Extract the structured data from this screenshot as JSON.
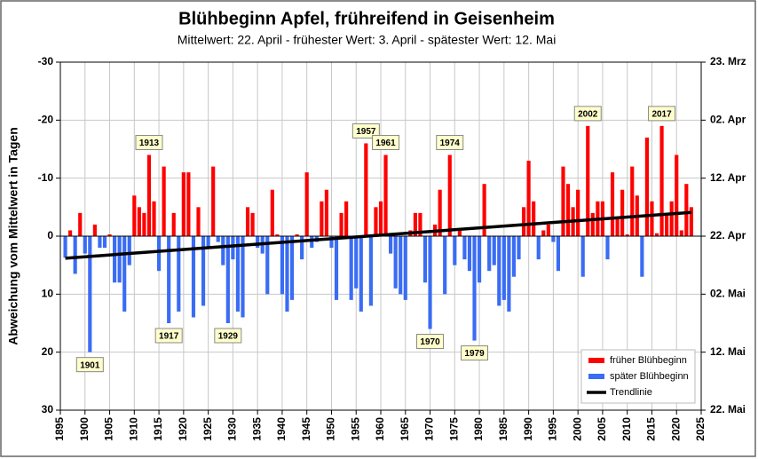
{
  "chart_data": {
    "type": "bar",
    "title": "Blühbeginn  Apfel, frühreifend in Geisenheim",
    "subtitle": "Mittelwert:  22. April - frühester Wert: 3. April - spätester Wert: 12. Mai",
    "y_label": "Abweichung vom Mittelwert in Tagen",
    "x": [
      1896,
      1897,
      1898,
      1899,
      1900,
      1901,
      1902,
      1903,
      1904,
      1905,
      1906,
      1907,
      1908,
      1909,
      1910,
      1911,
      1912,
      1913,
      1914,
      1915,
      1916,
      1917,
      1918,
      1919,
      1920,
      1921,
      1922,
      1923,
      1924,
      1925,
      1926,
      1927,
      1928,
      1929,
      1930,
      1931,
      1932,
      1933,
      1934,
      1935,
      1936,
      1937,
      1938,
      1939,
      1940,
      1941,
      1942,
      1943,
      1944,
      1945,
      1946,
      1947,
      1948,
      1949,
      1950,
      1951,
      1952,
      1953,
      1954,
      1955,
      1956,
      1957,
      1958,
      1959,
      1960,
      1961,
      1962,
      1963,
      1964,
      1965,
      1966,
      1967,
      1968,
      1969,
      1970,
      1971,
      1972,
      1973,
      1974,
      1975,
      1976,
      1977,
      1978,
      1979,
      1980,
      1981,
      1982,
      1983,
      1984,
      1985,
      1986,
      1987,
      1988,
      1989,
      1990,
      1991,
      1992,
      1993,
      1994,
      1995,
      1996,
      1997,
      1998,
      1999,
      2000,
      2001,
      2002,
      2003,
      2004,
      2005,
      2006,
      2007,
      2008,
      2009,
      2010,
      2011,
      2012,
      2013,
      2014,
      2015,
      2016,
      2017,
      2018,
      2019,
      2020,
      2021,
      2022,
      2023
    ],
    "series": [
      {
        "name": "früher Blühbeginn",
        "color": "#ff0000",
        "values": [
          null,
          -1,
          null,
          -4,
          null,
          null,
          -2,
          null,
          null,
          -0.3,
          null,
          null,
          null,
          null,
          -7,
          -5,
          -4,
          -14,
          -6,
          null,
          -12,
          null,
          -4,
          null,
          -11,
          -11,
          null,
          -5,
          null,
          null,
          -12,
          null,
          null,
          null,
          null,
          null,
          null,
          -5,
          -4,
          null,
          null,
          null,
          -8,
          -0.3,
          null,
          null,
          null,
          -0.3,
          null,
          -11,
          null,
          null,
          -6,
          -8,
          null,
          null,
          -4,
          -6,
          null,
          null,
          null,
          -16,
          null,
          -5,
          -6,
          -14,
          null,
          null,
          null,
          null,
          -1,
          -4,
          -4,
          null,
          null,
          -2,
          -8,
          null,
          -14,
          null,
          -1,
          null,
          null,
          null,
          null,
          -9,
          null,
          null,
          null,
          null,
          null,
          null,
          null,
          -5,
          -13,
          -6,
          null,
          -1,
          -2,
          null,
          null,
          -12,
          -9,
          -5,
          -8,
          null,
          -19,
          -4,
          -6,
          -6,
          null,
          -11,
          -3,
          -8,
          -0.3,
          -12,
          -7,
          null,
          -17,
          -6,
          -0.5,
          -19,
          -4,
          -6,
          -14,
          -1,
          -9,
          -5
        ]
      },
      {
        "name": "später Blühbeginn",
        "color": "#3a6cf4",
        "values": [
          3.7,
          null,
          6.5,
          null,
          3,
          20,
          null,
          2,
          2,
          null,
          8,
          8,
          13,
          5,
          null,
          null,
          null,
          null,
          null,
          6,
          null,
          15,
          null,
          13,
          null,
          null,
          14,
          null,
          12,
          2,
          null,
          1,
          5,
          15,
          4,
          13,
          14,
          null,
          null,
          2,
          3,
          10,
          null,
          null,
          10,
          13,
          11,
          null,
          4,
          null,
          2,
          1,
          null,
          null,
          2,
          11,
          null,
          null,
          11,
          9,
          13,
          null,
          12,
          null,
          null,
          null,
          3,
          9,
          10,
          11,
          null,
          null,
          null,
          8,
          16,
          null,
          null,
          10,
          null,
          5,
          null,
          4,
          6,
          18,
          8,
          null,
          6,
          5,
          12,
          11,
          13,
          7,
          4,
          null,
          null,
          null,
          4,
          null,
          null,
          1,
          6,
          null,
          null,
          null,
          null,
          7,
          null,
          null,
          null,
          null,
          4,
          null,
          null,
          null,
          null,
          null,
          null,
          7,
          null,
          null,
          null,
          null,
          null,
          null,
          null,
          null,
          null,
          null
        ]
      }
    ],
    "trendline": {
      "name": "Trendlinie",
      "color": "#000000",
      "x": [
        1896,
        2023
      ],
      "values": [
        3.8,
        -4.1
      ]
    },
    "annotations": [
      {
        "x": 1901,
        "text": "1901"
      },
      {
        "x": 1913,
        "text": "1913"
      },
      {
        "x": 1917,
        "text": "1917"
      },
      {
        "x": 1929,
        "text": "1929"
      },
      {
        "x": 1957,
        "text": "1957"
      },
      {
        "x": 1961,
        "text": "1961"
      },
      {
        "x": 1970,
        "text": "1970"
      },
      {
        "x": 1974,
        "text": "1974"
      },
      {
        "x": 1979,
        "text": "1979"
      },
      {
        "x": 2002,
        "text": "2002"
      },
      {
        "x": 2017,
        "text": "2017"
      }
    ],
    "xlim": [
      1895,
      2025
    ],
    "xticks": [
      1895,
      1900,
      1905,
      1910,
      1915,
      1920,
      1925,
      1930,
      1935,
      1940,
      1945,
      1950,
      1955,
      1960,
      1965,
      1970,
      1975,
      1980,
      1985,
      1990,
      1995,
      2000,
      2005,
      2010,
      2015,
      2020,
      2025
    ],
    "ylim": [
      -30,
      30
    ],
    "y_reversed": true,
    "yticks": [
      -30,
      -20,
      -10,
      0,
      10,
      20,
      30
    ],
    "y2lim": [
      -30,
      30
    ],
    "y2ticks": [
      {
        "value": -30,
        "label": "23. Mrz"
      },
      {
        "value": -20,
        "label": "02. Apr"
      },
      {
        "value": -10,
        "label": "12. Apr"
      },
      {
        "value": 0,
        "label": "22. Apr"
      },
      {
        "value": 10,
        "label": "02. Mai"
      },
      {
        "value": 20,
        "label": "12. Mai"
      },
      {
        "value": 30,
        "label": "22. Mai"
      }
    ],
    "grid": true,
    "legend": "lower right"
  }
}
